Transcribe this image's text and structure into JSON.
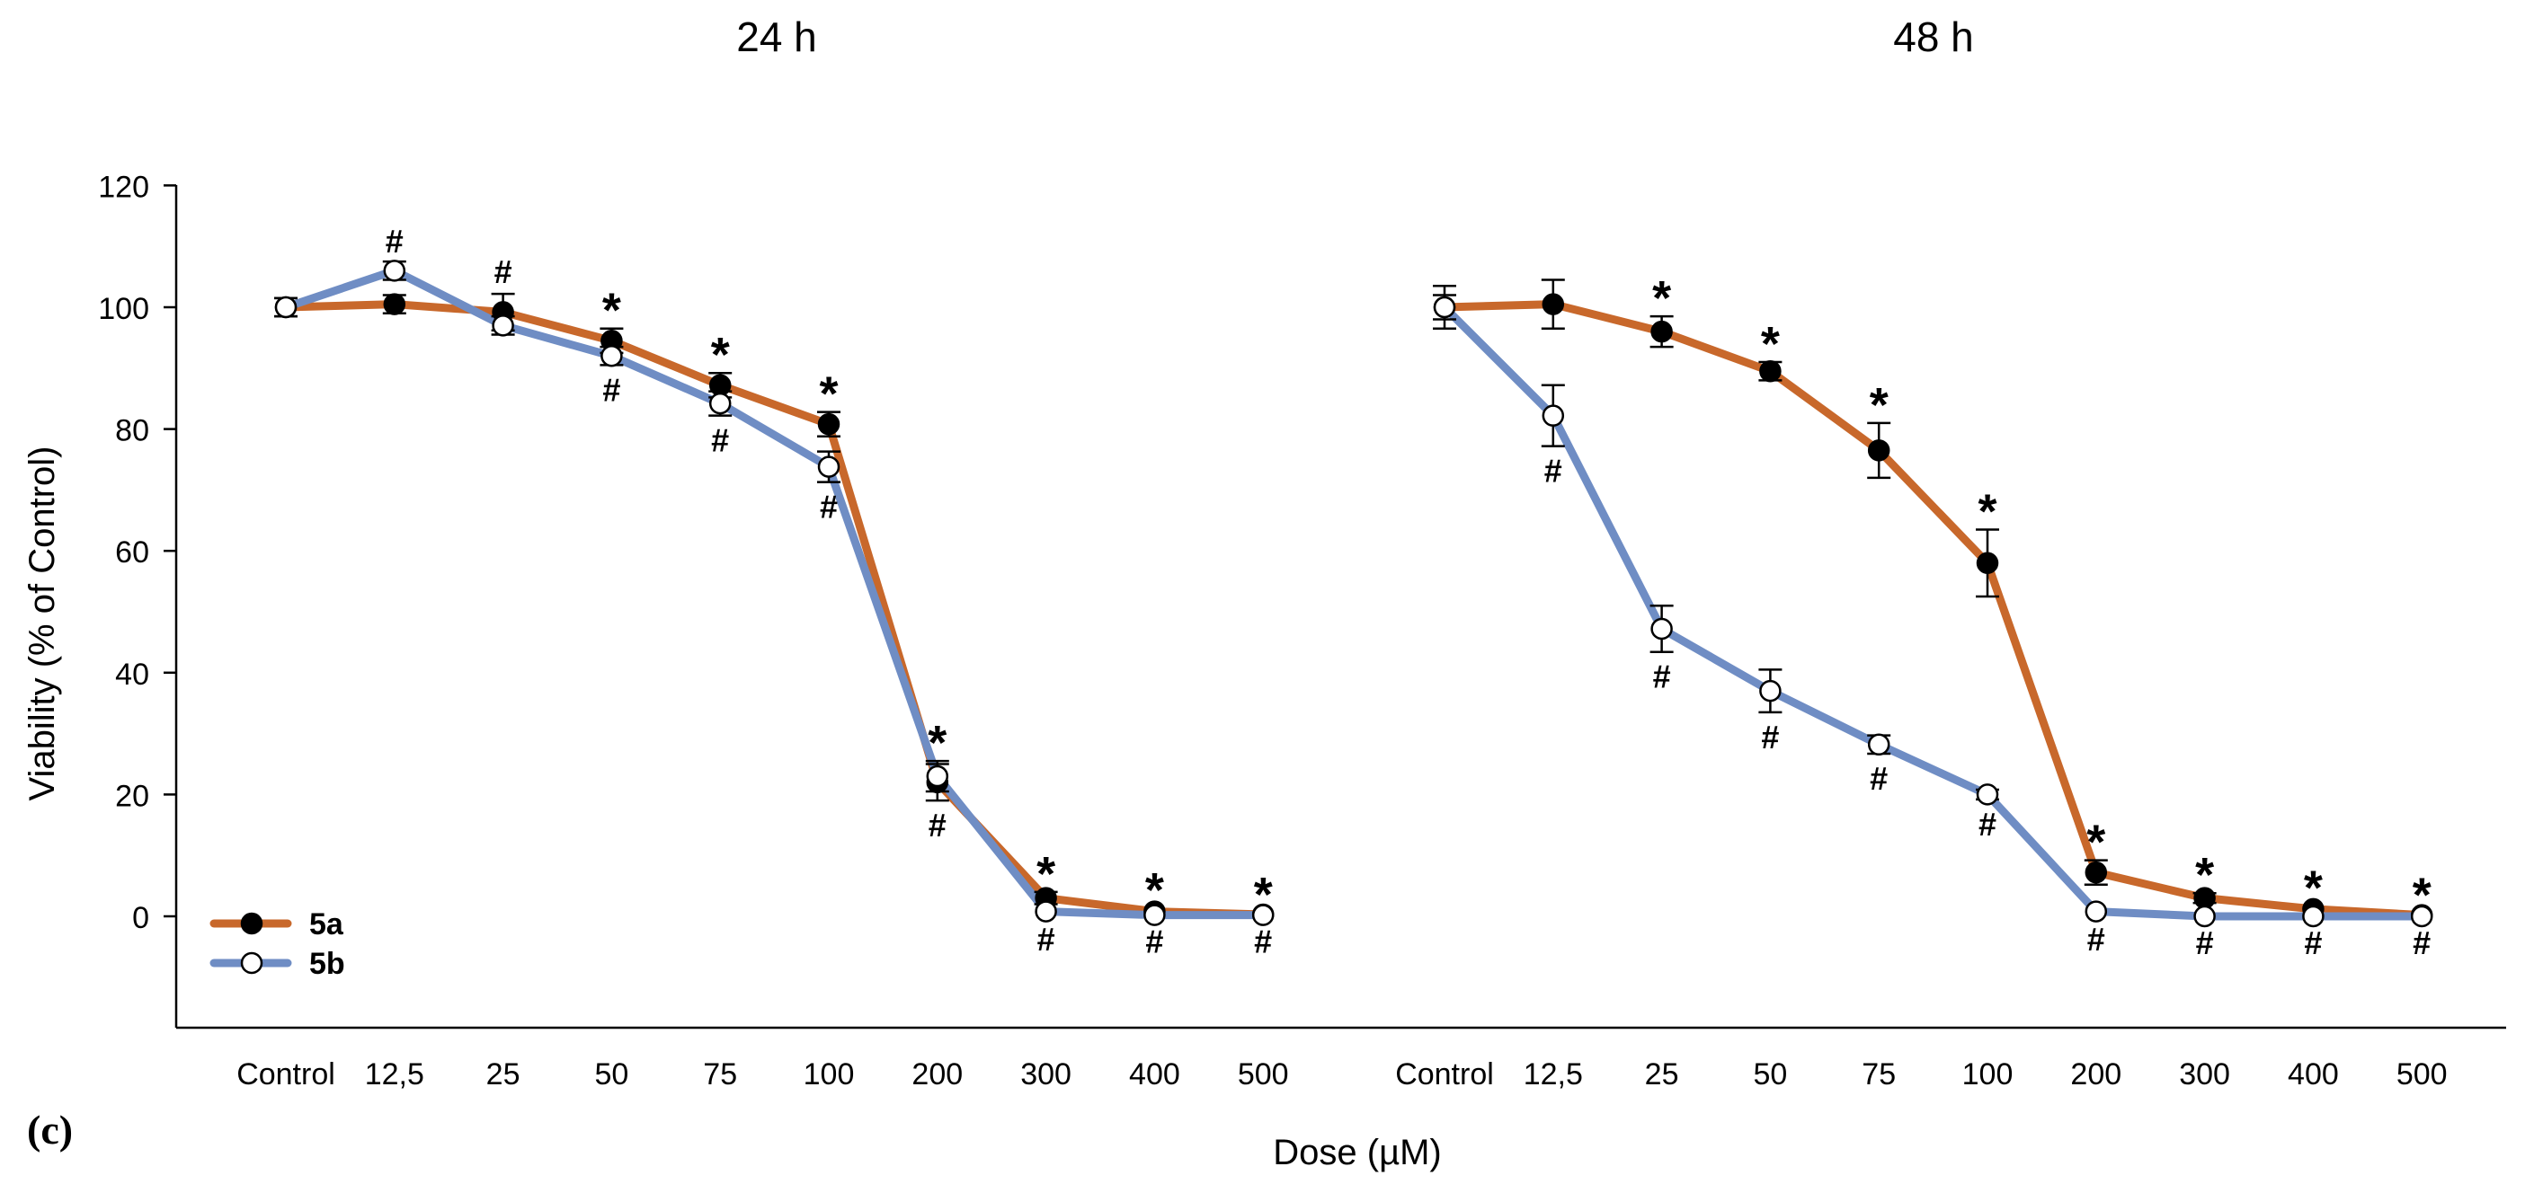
{
  "chart_data": {
    "type": "line",
    "panel_label": "(c)",
    "xlabel": "Dose (µM)",
    "ylabel": "Viability (% of Control)",
    "ylim": [
      -18,
      120
    ],
    "yticks": [
      0,
      20,
      40,
      60,
      80,
      100,
      120
    ],
    "categories": [
      "Control",
      "12,5",
      "25",
      "50",
      "75",
      "100",
      "200",
      "300",
      "400",
      "500"
    ],
    "colors": {
      "5a": "#c8682b",
      "5b": "#6f8dc4"
    },
    "legend": {
      "placement": "bottom-left",
      "entries": [
        {
          "label": "5a",
          "series": "5a",
          "marker": "filled"
        },
        {
          "label": "5b",
          "series": "5b",
          "marker": "open"
        }
      ]
    },
    "star_symbol": "*",
    "hash_symbol": "#",
    "panels": [
      {
        "title": "24 h",
        "series": [
          {
            "name": "5a",
            "values": [
              100,
              100.5,
              99.2,
              94.5,
              87.2,
              80.8,
              22.0,
              3.0,
              0.8,
              0.3
            ],
            "errors": [
              1.5,
              1.5,
              3.0,
              2.0,
              2.0,
              2.0,
              3.0,
              1.0,
              0.5,
              0.3
            ],
            "significant": [
              false,
              false,
              false,
              true,
              true,
              true,
              true,
              true,
              true,
              true
            ]
          },
          {
            "name": "5b",
            "values": [
              100,
              106,
              97,
              92,
              84.2,
              73.8,
              23.0,
              0.8,
              0.2,
              0.2
            ],
            "errors": [
              1.5,
              1.5,
              1.5,
              1.5,
              2.0,
              2.5,
              2.5,
              0.5,
              0.3,
              0.3
            ],
            "significant": [
              false,
              true,
              true,
              true,
              true,
              true,
              true,
              true,
              true,
              true
            ]
          }
        ]
      },
      {
        "title": "48 h",
        "series": [
          {
            "name": "5a",
            "values": [
              100,
              100.5,
              96,
              89.5,
              76.5,
              58,
              7.2,
              3.0,
              1.2,
              0.2
            ],
            "errors": [
              3.5,
              4.0,
              2.5,
              1.5,
              4.5,
              5.5,
              2.0,
              0.8,
              0.5,
              0.3
            ],
            "significant": [
              false,
              false,
              true,
              true,
              true,
              true,
              true,
              true,
              true,
              true
            ]
          },
          {
            "name": "5b",
            "values": [
              100,
              82.2,
              47.2,
              37,
              28.2,
              20,
              0.8,
              0,
              0,
              0
            ],
            "errors": [
              2.0,
              5.0,
              3.8,
              3.5,
              1.5,
              0.8,
              0.5,
              0.3,
              0.3,
              0.3
            ],
            "significant": [
              false,
              true,
              true,
              true,
              true,
              true,
              true,
              true,
              true,
              true
            ]
          }
        ]
      }
    ]
  }
}
